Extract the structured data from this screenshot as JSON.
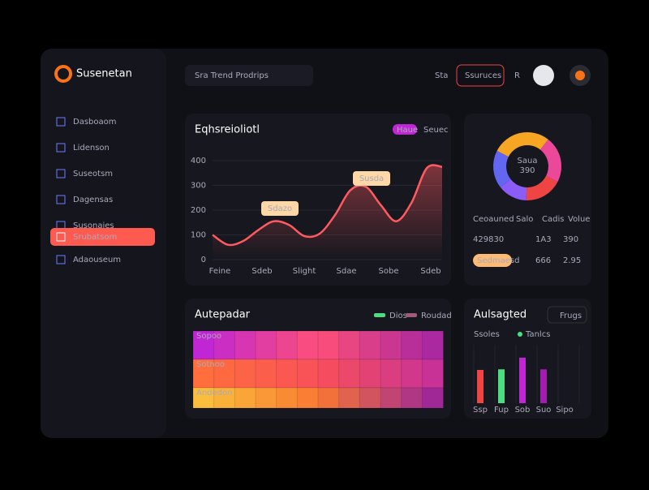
{
  "sidebar": {
    "brand": "Susenetan",
    "nav": [
      "Dasboaom",
      "Lidenson",
      "Suseotsm",
      "Dagensas",
      "Susonaies",
      "Srubatsom",
      "Adaouseum"
    ]
  },
  "header": {
    "search": "Sra Trend Prodrips",
    "menu": "Sta",
    "button": "Ssuruces",
    "icon": "R"
  },
  "line_card": {
    "title": "Eqhsreioliotl",
    "legend": [
      "Haue",
      "Seuec"
    ],
    "ylim": [
      0,
      400
    ],
    "yticks": [
      0,
      100,
      200,
      300,
      400
    ],
    "x_labels": [
      "Feine",
      "Sdeb",
      "Slight",
      "Sdae",
      "Sobe",
      "Sdeb"
    ],
    "values": [
      100,
      60,
      75,
      120,
      155,
      140,
      95,
      105,
      180,
      280,
      295,
      220,
      155,
      230,
      370,
      375
    ],
    "color": "#ff5a5f",
    "annotations": [
      "Sdazo",
      "Susda"
    ]
  },
  "donut_card": {
    "center_label": "Saua",
    "center_value": "390",
    "values": [
      28,
      22,
      18,
      14,
      18
    ],
    "colors": [
      "#f6a623",
      "#ec4899",
      "#ef4444",
      "#8b5cf6",
      "#6366f1"
    ],
    "stats": {
      "headers": [
        "Ceoauned",
        "Salo",
        "Cadis",
        "Volue"
      ],
      "rows": [
        [
          "429830",
          "1A3",
          "390"
        ],
        [
          "Sedmaesd",
          "666",
          "2.95"
        ]
      ]
    }
  },
  "heatmap_card": {
    "title": "Autepadar",
    "legend": [
      "Dios",
      "Roudad"
    ],
    "rows": [
      "Sopoo",
      "Sotnoo",
      "Andedon"
    ]
  },
  "bar_card": {
    "title": "Aulsagted",
    "button": "Frugs",
    "legend": [
      "Ssoles",
      "Tanlcs"
    ],
    "categories": [
      "Ssp",
      "Fup",
      "Sob",
      "Suo",
      "Sipo"
    ],
    "values": [
      57,
      58,
      78,
      58,
      null
    ],
    "colors": [
      "#ef4444",
      "#4ade80",
      "#c026d3",
      "#a21caf",
      null
    ],
    "ylim": [
      0,
      100
    ]
  }
}
